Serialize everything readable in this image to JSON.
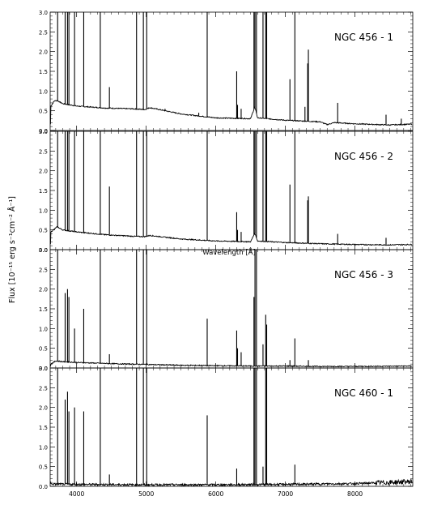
{
  "chart_data": {
    "type": "line",
    "xlabel": "Wavelength [Å]",
    "ylabel": "Flux [10⁻¹⁵ erg s⁻¹cm⁻² Å⁻¹]",
    "xlim": [
      3620,
      8830
    ],
    "x_ticks": [
      4000,
      5000,
      6000,
      7000,
      8000
    ],
    "x_tick_labels": [
      "4000",
      "5000",
      "6000",
      "7000",
      "8000"
    ],
    "ylim": [
      0,
      3.0
    ],
    "y_ticks": [
      0,
      0.5,
      1.0,
      1.5,
      2.0,
      2.5,
      3.0
    ],
    "y_tick_labels": [
      "0.0",
      "0.5",
      "1.0",
      "1.5",
      "2.0",
      "2.5",
      "3.0"
    ],
    "panels": [
      {
        "label": "NGC 456 - 1",
        "continuum": [
          [
            3630,
            0.62
          ],
          [
            3680,
            0.75
          ],
          [
            3720,
            0.76
          ],
          [
            3800,
            0.68
          ],
          [
            4000,
            0.62
          ],
          [
            4400,
            0.57
          ],
          [
            4800,
            0.55
          ],
          [
            4980,
            0.53
          ],
          [
            5050,
            0.58
          ],
          [
            5500,
            0.42
          ],
          [
            6000,
            0.32
          ],
          [
            6500,
            0.3
          ],
          [
            6560,
            0.6
          ],
          [
            6600,
            0.32
          ],
          [
            7000,
            0.26
          ],
          [
            7500,
            0.22
          ],
          [
            7600,
            0.15
          ],
          [
            7700,
            0.2
          ],
          [
            8000,
            0.17
          ],
          [
            8500,
            0.14
          ],
          [
            8800,
            0.16
          ]
        ],
        "lines": [
          [
            3727,
            3.0
          ],
          [
            3835,
            3.0
          ],
          [
            3869,
            3.0
          ],
          [
            3889,
            3.0
          ],
          [
            3970,
            3.0
          ],
          [
            4102,
            3.0
          ],
          [
            4340,
            3.0
          ],
          [
            4471,
            1.1
          ],
          [
            4861,
            3.0
          ],
          [
            4959,
            3.0
          ],
          [
            5007,
            3.0
          ],
          [
            5270,
            0.55
          ],
          [
            5755,
            0.45
          ],
          [
            5876,
            3.0
          ],
          [
            6300,
            1.5
          ],
          [
            6312,
            0.65
          ],
          [
            6364,
            0.55
          ],
          [
            6548,
            3.0
          ],
          [
            6563,
            3.0
          ],
          [
            6584,
            3.0
          ],
          [
            6678,
            3.0
          ],
          [
            6717,
            3.0
          ],
          [
            6731,
            3.0
          ],
          [
            7065,
            1.3
          ],
          [
            7136,
            3.0
          ],
          [
            7281,
            0.6
          ],
          [
            7320,
            1.7
          ],
          [
            7330,
            2.05
          ],
          [
            7751,
            0.7
          ],
          [
            8446,
            0.4
          ],
          [
            8665,
            0.3
          ]
        ]
      },
      {
        "label": "NGC 456 - 2",
        "continuum": [
          [
            3630,
            0.45
          ],
          [
            3680,
            0.52
          ],
          [
            3720,
            0.58
          ],
          [
            3800,
            0.5
          ],
          [
            4000,
            0.45
          ],
          [
            4400,
            0.38
          ],
          [
            4800,
            0.34
          ],
          [
            4980,
            0.33
          ],
          [
            5050,
            0.36
          ],
          [
            5500,
            0.27
          ],
          [
            6000,
            0.22
          ],
          [
            6500,
            0.2
          ],
          [
            6560,
            0.42
          ],
          [
            6600,
            0.22
          ],
          [
            7000,
            0.18
          ],
          [
            7500,
            0.15
          ],
          [
            8000,
            0.13
          ],
          [
            8500,
            0.12
          ],
          [
            8800,
            0.13
          ]
        ],
        "lines": [
          [
            3727,
            3.0
          ],
          [
            3835,
            3.0
          ],
          [
            3869,
            3.0
          ],
          [
            3889,
            3.0
          ],
          [
            3970,
            3.0
          ],
          [
            4102,
            3.0
          ],
          [
            4340,
            3.0
          ],
          [
            4471,
            1.6
          ],
          [
            4861,
            3.0
          ],
          [
            4959,
            3.0
          ],
          [
            5007,
            3.0
          ],
          [
            5876,
            3.0
          ],
          [
            6300,
            0.95
          ],
          [
            6312,
            0.5
          ],
          [
            6364,
            0.45
          ],
          [
            6548,
            3.0
          ],
          [
            6563,
            3.0
          ],
          [
            6584,
            3.0
          ],
          [
            6678,
            3.0
          ],
          [
            6717,
            3.0
          ],
          [
            6731,
            3.0
          ],
          [
            7065,
            1.65
          ],
          [
            7136,
            3.0
          ],
          [
            7320,
            1.25
          ],
          [
            7330,
            1.35
          ],
          [
            7751,
            0.4
          ],
          [
            8446,
            0.3
          ]
        ]
      },
      {
        "label": "NGC 456 - 3",
        "continuum": [
          [
            3630,
            0.1
          ],
          [
            3700,
            0.18
          ],
          [
            3800,
            0.16
          ],
          [
            4000,
            0.14
          ],
          [
            4500,
            0.11
          ],
          [
            5000,
            0.09
          ],
          [
            5500,
            0.07
          ],
          [
            6000,
            0.06
          ],
          [
            6500,
            0.05
          ],
          [
            7000,
            0.05
          ],
          [
            7500,
            0.04
          ],
          [
            8000,
            0.04
          ],
          [
            8800,
            0.05
          ]
        ],
        "lines": [
          [
            3727,
            3.0
          ],
          [
            3835,
            1.9
          ],
          [
            3869,
            2.0
          ],
          [
            3889,
            1.8
          ],
          [
            3970,
            1.0
          ],
          [
            4102,
            1.5
          ],
          [
            4340,
            3.0
          ],
          [
            4471,
            0.35
          ],
          [
            4861,
            3.0
          ],
          [
            4959,
            3.0
          ],
          [
            5007,
            3.0
          ],
          [
            5876,
            1.25
          ],
          [
            6300,
            0.95
          ],
          [
            6312,
            0.5
          ],
          [
            6364,
            0.4
          ],
          [
            6548,
            1.8
          ],
          [
            6563,
            3.0
          ],
          [
            6584,
            3.0
          ],
          [
            6678,
            0.6
          ],
          [
            6717,
            1.35
          ],
          [
            6731,
            1.1
          ],
          [
            7065,
            0.2
          ],
          [
            7136,
            0.75
          ],
          [
            7330,
            0.2
          ]
        ]
      },
      {
        "label": "NGC 460 - 1",
        "continuum": [
          [
            3630,
            0.06
          ],
          [
            4000,
            0.05
          ],
          [
            5000,
            0.04
          ],
          [
            6000,
            0.04
          ],
          [
            7000,
            0.05
          ],
          [
            8000,
            0.07
          ],
          [
            8500,
            0.1
          ],
          [
            8800,
            0.12
          ]
        ],
        "lines": [
          [
            3727,
            3.0
          ],
          [
            3835,
            2.2
          ],
          [
            3869,
            2.4
          ],
          [
            3889,
            1.9
          ],
          [
            3970,
            2.0
          ],
          [
            4102,
            1.9
          ],
          [
            4340,
            3.0
          ],
          [
            4471,
            0.3
          ],
          [
            4861,
            3.0
          ],
          [
            4959,
            3.0
          ],
          [
            5007,
            3.0
          ],
          [
            5876,
            1.8
          ],
          [
            6300,
            0.45
          ],
          [
            6548,
            3.0
          ],
          [
            6563,
            3.0
          ],
          [
            6584,
            3.0
          ],
          [
            6678,
            0.5
          ],
          [
            6717,
            3.0
          ],
          [
            6731,
            3.0
          ],
          [
            7136,
            0.55
          ]
        ]
      }
    ]
  }
}
